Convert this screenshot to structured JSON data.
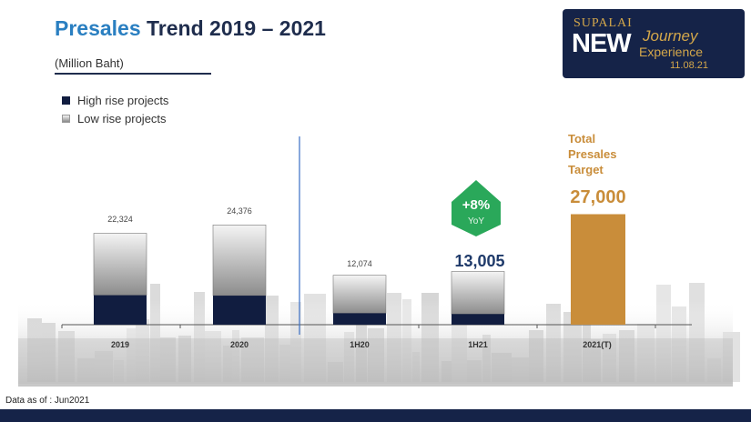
{
  "header": {
    "title_accent": "Presales",
    "title_rest": " Trend 2019 – 2021",
    "subtitle": "(Million Baht)"
  },
  "logo": {
    "brand": "SUPALAI",
    "new": "NEW",
    "journey": "Journey",
    "experience": "Experience",
    "date": "11.08.21"
  },
  "legend": {
    "high_rise": "High rise projects",
    "low_rise": "Low rise projects"
  },
  "colors": {
    "high_rise": "#111d40",
    "target": "#c98d3a",
    "yoy_badge": "#2aa85a",
    "accent_blue": "#2a7fc1",
    "footer": "#152348"
  },
  "annotations": {
    "yoy_value": "+8%",
    "yoy_label": "YoY",
    "target_label_1": "Total",
    "target_label_2": "Presales",
    "target_label_3": "Target"
  },
  "footer": {
    "note": "Data as of : Jun2021"
  },
  "chart_data": {
    "type": "bar",
    "title": "Presales Trend 2019 – 2021",
    "ylabel": "(Million Baht)",
    "categories": [
      "2019",
      "2020",
      "1H20",
      "1H21",
      "2021(T)"
    ],
    "totals": [
      22324,
      24376,
      12074,
      13005,
      27000
    ],
    "total_labels": [
      "22,324",
      "24,376",
      "12,074",
      "13,005",
      "27,000"
    ],
    "series": [
      {
        "name": "High rise projects",
        "values": [
          7200,
          7100,
          2800,
          2600,
          null
        ]
      },
      {
        "name": "Low rise projects",
        "values": [
          15124,
          17276,
          9274,
          10405,
          null
        ]
      }
    ],
    "target": {
      "category": "2021(T)",
      "value": 27000
    },
    "ylim": [
      0,
      31000
    ],
    "grid": false,
    "legend_position": "top-left"
  }
}
